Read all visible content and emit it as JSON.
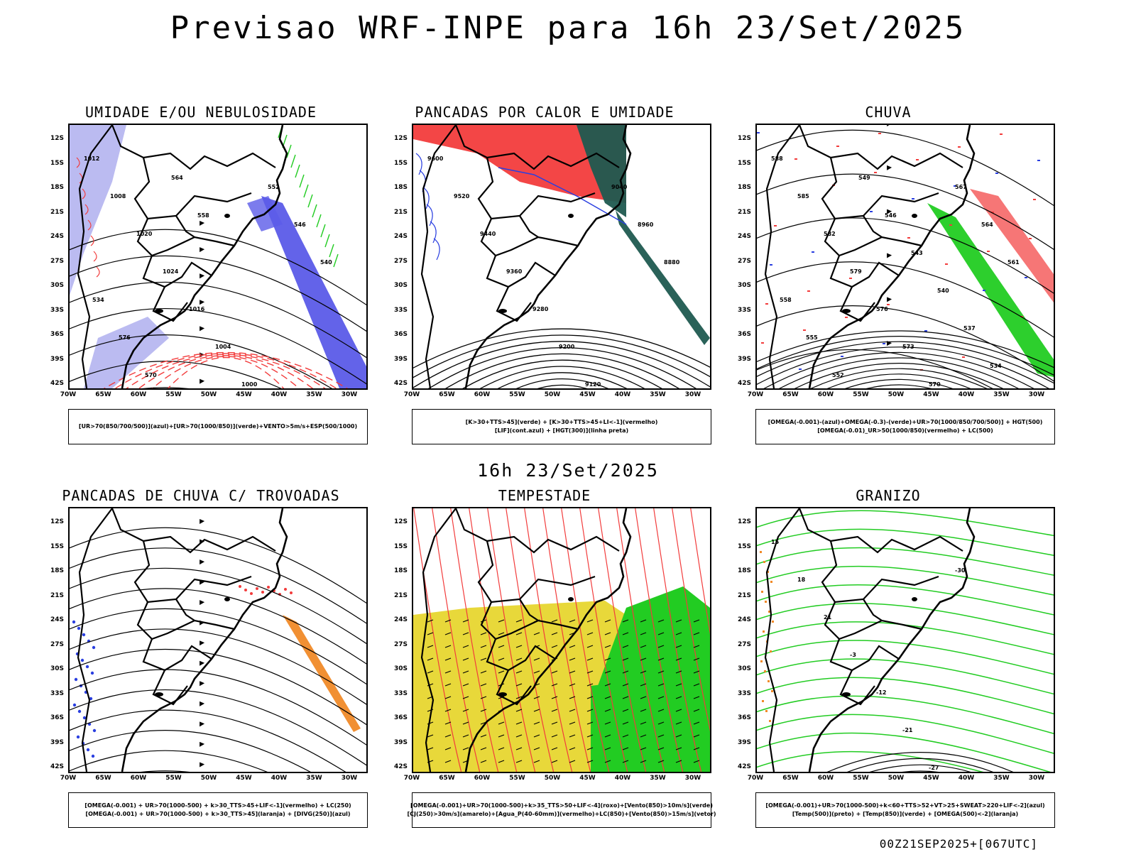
{
  "header": {
    "title": "Previsao WRF-INPE  para 16h 23/Set/2025"
  },
  "mid_title": "16h 23/Set/2025",
  "footer": "00Z21SEP2025+[067UTC]",
  "axes": {
    "lat_labels": [
      "12S",
      "15S",
      "18S",
      "21S",
      "24S",
      "27S",
      "30S",
      "33S",
      "36S",
      "39S",
      "42S"
    ],
    "lon_labels": [
      "70W",
      "65W",
      "60W",
      "55W",
      "50W",
      "45W",
      "40W",
      "35W",
      "30W"
    ]
  },
  "colors": {
    "blue_humidity": "#5b5be8",
    "lavender": "#b4b4f0",
    "green": "#22cc22",
    "red": "#f23c3c",
    "dark_teal": "#1f5a50",
    "yellow": "#e8d83a",
    "orange": "#f08a28"
  },
  "panels": [
    {
      "title": "UMIDADE E/OU NEBULOSIDADE",
      "legend": [
        "[UR>70(850/700/500)](azul)+[UR>70(1000/850)](verde)+VENTO>5m/s+ESP(500/1000)"
      ],
      "contour_labels": [
        "1012",
        "1008",
        "1020",
        "1024",
        "1016",
        "1004",
        "1000",
        "552",
        "546",
        "540",
        "534",
        "576",
        "570",
        "564",
        "558"
      ]
    },
    {
      "title": "PANCADAS POR CALOR E UMIDADE",
      "legend": [
        "[K>30+TTS>45](verde) + [K>30+TTS>45+LI<-1](vermelho)",
        "[LIF](cont.azul) + [HGT(300)](linha preta)"
      ],
      "contour_labels": [
        "9600",
        "9520",
        "9440",
        "9360",
        "9280",
        "9200",
        "9120",
        "9040",
        "8960",
        "8880"
      ]
    },
    {
      "title": "CHUVA",
      "legend": [
        "[OMEGA(-0.001)-(azul)+OMEGA(-0.3)-(verde)+UR>70(1000/850/700/500)] + HGT(500)",
        "[OMEGA(-0.01)_UR>50(1000/850)(vermelho) + LC(500)"
      ],
      "contour_labels": [
        "588",
        "585",
        "582",
        "579",
        "576",
        "573",
        "570",
        "567",
        "564",
        "561",
        "558",
        "555",
        "552",
        "549",
        "546",
        "543",
        "540",
        "537",
        "534"
      ]
    },
    {
      "title": "PANCADAS DE CHUVA C/ TROVOADAS",
      "legend": [
        "[OMEGA(-0.001) + UR>70(1000-500) + k>30_TTS>45+LIF<-1](vermelho) + LC(250)",
        "[OMEGA(-0.001) + UR>70(1000-500) + k>30_TTS>45](laranja) + [DIVG(250)](azul)"
      ],
      "contour_labels": []
    },
    {
      "title": "TEMPESTADE",
      "legend": [
        "[OMEGA(-0.001)+UR>70(1000-500)+k>35_TTS>50+LIF<-4](roxo)+[Vento(850)>10m/s](verde)",
        "[CJ(250)>30m/s](amarelo)+[Agua_P(40-60mm)](vermelho)+LC(850)+[Vento(850)>15m/s](vetor)"
      ],
      "contour_labels": []
    },
    {
      "title": "GRANIZO",
      "legend": [
        "[OMEGA(-0.001)+UR>70(1000-500)+k<60+TTS>52+VT>25+SWEAT>220+LIF<-2](azul)",
        "[Temp(500)](preto) + [Temp(850)](verde) + [OMEGA(500)<-2](laranja)"
      ],
      "contour_labels": [
        "15",
        "18",
        "21",
        "-3",
        "-12",
        "-21",
        "-27",
        "-30"
      ]
    }
  ]
}
